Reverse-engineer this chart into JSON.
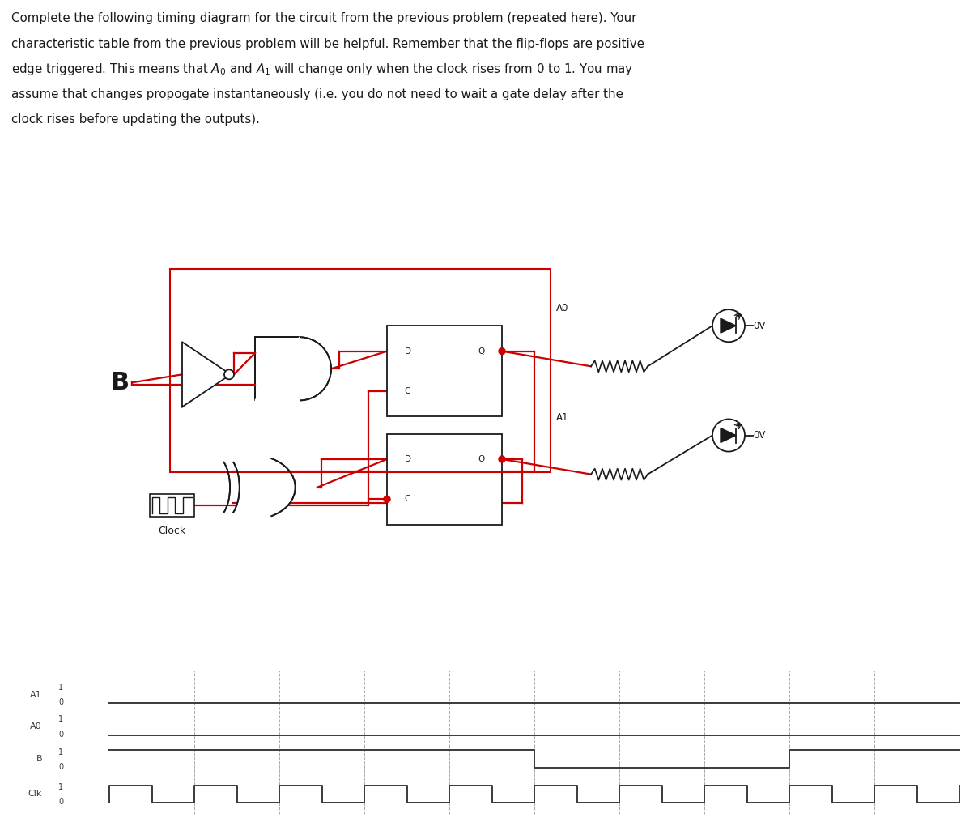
{
  "bg_color": "#ffffff",
  "text_color": "#1a1a1a",
  "signal_color": "#3c3c3c",
  "circuit_color": "#1a1a1a",
  "red_color": "#cc0000",
  "grid_color": "#888888",
  "paragraph_lines": [
    "Complete the following timing diagram for the circuit from the previous problem (repeated here). Your",
    "characteristic table from the previous problem will be helpful. Remember that the flip-flops are positive",
    "edge triggered. This means that $A_0$ and $A_1$ will change only when the clock rises from 0 to 1. You may",
    "assume that changes propogate instantaneously (i.e. you do not need to wait a gate delay after the",
    "clock rises before updating the outputs)."
  ],
  "b_vals": [
    1,
    1,
    1,
    1,
    1,
    0,
    0,
    0,
    1,
    1
  ],
  "n_cycles": 10,
  "timing_labels": [
    "A1",
    "A0",
    "B",
    "Clk"
  ]
}
